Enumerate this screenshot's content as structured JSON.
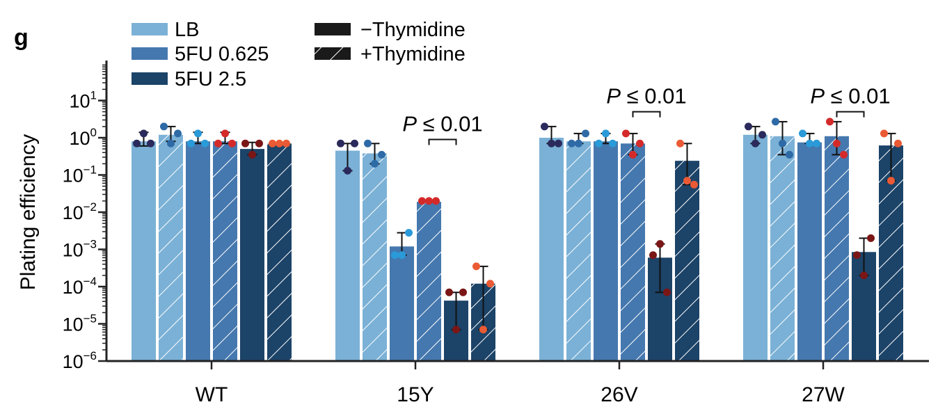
{
  "panel_label": "g",
  "colors": {
    "LB": "#7bb1d6",
    "5FU 0.625": "#4578ae",
    "5FU 2.5": "#1c4368",
    "axis": "#222222"
  },
  "chart_data": {
    "type": "bar",
    "title": "",
    "xlabel": "",
    "ylabel": "Plating efficiency",
    "yscale": "log",
    "ylim": [
      1e-06,
      100
    ],
    "yticks": [
      {
        "base": "10",
        "exp": "1",
        "value": 10
      },
      {
        "base": "10",
        "exp": "0",
        "value": 1
      },
      {
        "base": "10",
        "exp": "−1",
        "value": 0.1
      },
      {
        "base": "10",
        "exp": "−2",
        "value": 0.01
      },
      {
        "base": "10",
        "exp": "−3",
        "value": 0.001
      },
      {
        "base": "10",
        "exp": "−4",
        "value": 0.0001
      },
      {
        "base": "10",
        "exp": "−5",
        "value": 1e-05
      },
      {
        "base": "10",
        "exp": "−6",
        "value": 1e-06
      }
    ],
    "categories": [
      "WT",
      "15Y",
      "26V",
      "27W"
    ],
    "legend": {
      "placement": "top-left",
      "conditions": [
        "LB",
        "5FU 0.625",
        "5FU 2.5"
      ],
      "thymidine": [
        "−Thymidine",
        "+Thymidine"
      ]
    },
    "series": [
      {
        "name": "LB",
        "thymidine": "−Thymidine",
        "values": [
          0.8,
          0.45,
          1.0,
          1.2
        ],
        "points": [
          [
            0.7,
            1.3,
            0.7
          ],
          [
            0.7,
            0.13,
            0.7
          ],
          [
            2.0,
            0.7,
            0.7
          ],
          [
            2.0,
            0.7,
            1.2
          ]
        ],
        "point_color": "#2b2a5c"
      },
      {
        "name": "LB",
        "thymidine": "+Thymidine",
        "values": [
          1.2,
          0.38,
          0.8,
          1.1
        ],
        "points": [
          [
            2.0,
            0.7,
            1.3
          ],
          [
            0.7,
            0.2,
            0.35
          ],
          [
            0.7,
            0.7,
            1.3
          ],
          [
            2.7,
            0.7,
            0.35
          ]
        ],
        "point_color": "#2e6aa6"
      },
      {
        "name": "5FU 0.625",
        "thymidine": "−Thymidine",
        "values": [
          0.8,
          0.0012,
          0.8,
          0.75
        ],
        "points": [
          [
            0.7,
            1.3,
            0.7
          ],
          [
            0.0007,
            0.0007,
            0.0028
          ],
          [
            0.7,
            1.3,
            0.7
          ],
          [
            1.3,
            0.7,
            0.7
          ]
        ],
        "point_color": "#2a9ad8"
      },
      {
        "name": "5FU 0.625",
        "thymidine": "+Thymidine",
        "values": [
          0.8,
          0.019,
          0.7,
          1.1
        ],
        "points": [
          [
            0.7,
            1.3,
            0.7
          ],
          [
            0.02,
            0.02,
            0.02
          ],
          [
            1.3,
            0.35,
            0.7
          ],
          [
            2.7,
            0.7,
            0.35
          ]
        ],
        "point_color": "#d42a2a"
      },
      {
        "name": "5FU 2.5",
        "thymidine": "−Thymidine",
        "values": [
          0.5,
          4.2e-05,
          0.0006,
          0.00085
        ],
        "points": [
          [
            0.7,
            0.35,
            0.7
          ],
          [
            7e-05,
            7e-06,
            7e-05
          ],
          [
            0.0007,
            0.0014,
            7e-05
          ],
          [
            0.0007,
            0.0002,
            0.002
          ]
        ],
        "point_color": "#7a1616"
      },
      {
        "name": "5FU 2.5",
        "thymidine": "+Thymidine",
        "values": [
          0.7,
          0.00012,
          0.24,
          0.62
        ],
        "points": [
          [
            0.7,
            0.7,
            0.7
          ],
          [
            0.00035,
            7e-06,
            0.00012
          ],
          [
            0.7,
            0.07,
            0.055
          ],
          [
            1.3,
            0.07,
            0.7
          ]
        ],
        "point_color": "#ea5a35"
      }
    ],
    "error_bars": [
      [
        [
          0.6,
          1.4
        ],
        [
          0.8,
          2.0
        ],
        [
          0.7,
          1.4
        ],
        [
          0.7,
          1.4
        ],
        [
          0.35,
          0.75
        ],
        [
          0.7,
          0.7
        ]
      ],
      [
        [
          0.13,
          0.7
        ],
        [
          0.2,
          0.7
        ],
        [
          0.0007,
          0.0028
        ],
        [
          0.02,
          0.02
        ],
        [
          7e-06,
          7e-05
        ],
        [
          7e-06,
          0.00035
        ]
      ],
      [
        [
          0.7,
          2.0
        ],
        [
          0.7,
          1.3
        ],
        [
          0.7,
          1.3
        ],
        [
          0.35,
          1.3
        ],
        [
          7e-05,
          0.0014
        ],
        [
          0.055,
          0.7
        ]
      ],
      [
        [
          0.7,
          2.0
        ],
        [
          0.35,
          2.7
        ],
        [
          0.7,
          1.3
        ],
        [
          0.35,
          2.7
        ],
        [
          0.0002,
          0.002
        ],
        [
          0.07,
          1.3
        ]
      ]
    ],
    "annotations": [
      {
        "category": "15Y",
        "text_italic": "P",
        "text": " ≤ 0.01",
        "y_level": 0.9
      },
      {
        "category": "26V",
        "text_italic": "P",
        "text": " ≤ 0.01",
        "y_level": 5
      },
      {
        "category": "27W",
        "text_italic": "P",
        "text": " ≤ 0.01",
        "y_level": 5
      }
    ]
  }
}
